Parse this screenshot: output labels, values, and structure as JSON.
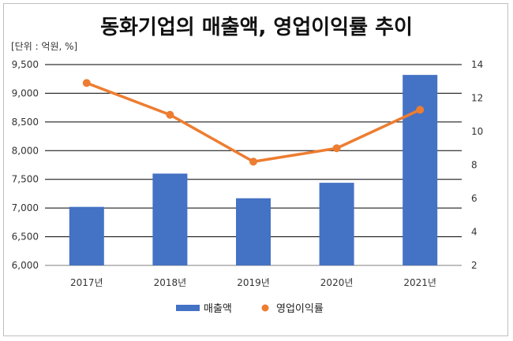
{
  "chart_data": {
    "type": "bar+line",
    "title": "동화기업의 매출액, 영업이익률 추이",
    "unit_label": "[단위 : 억원, %]",
    "categories": [
      "2017년",
      "2018년",
      "2019년",
      "2020년",
      "2021년"
    ],
    "series": [
      {
        "name": "매출액",
        "type": "bar",
        "axis": "left",
        "color": "#4472c4",
        "values": [
          7020,
          7600,
          7170,
          7440,
          9320
        ]
      },
      {
        "name": "영업이익률",
        "type": "line",
        "axis": "right",
        "color": "#ed7d31",
        "values": [
          12.9,
          11.0,
          8.2,
          9.0,
          11.3
        ]
      }
    ],
    "y_left": {
      "range": [
        6000,
        9500
      ],
      "ticks": [
        "6,000",
        "6,500",
        "7,000",
        "7,500",
        "8,000",
        "8,500",
        "9,000",
        "9,500"
      ],
      "tick_values": [
        6000,
        6500,
        7000,
        7500,
        8000,
        8500,
        9000,
        9500
      ]
    },
    "y_right": {
      "range": [
        2,
        14
      ],
      "ticks": [
        "2",
        "4",
        "6",
        "8",
        "10",
        "12",
        "14"
      ],
      "tick_values": [
        2,
        4,
        6,
        8,
        10,
        12,
        14
      ]
    },
    "grid": true,
    "legend_position": "bottom"
  }
}
